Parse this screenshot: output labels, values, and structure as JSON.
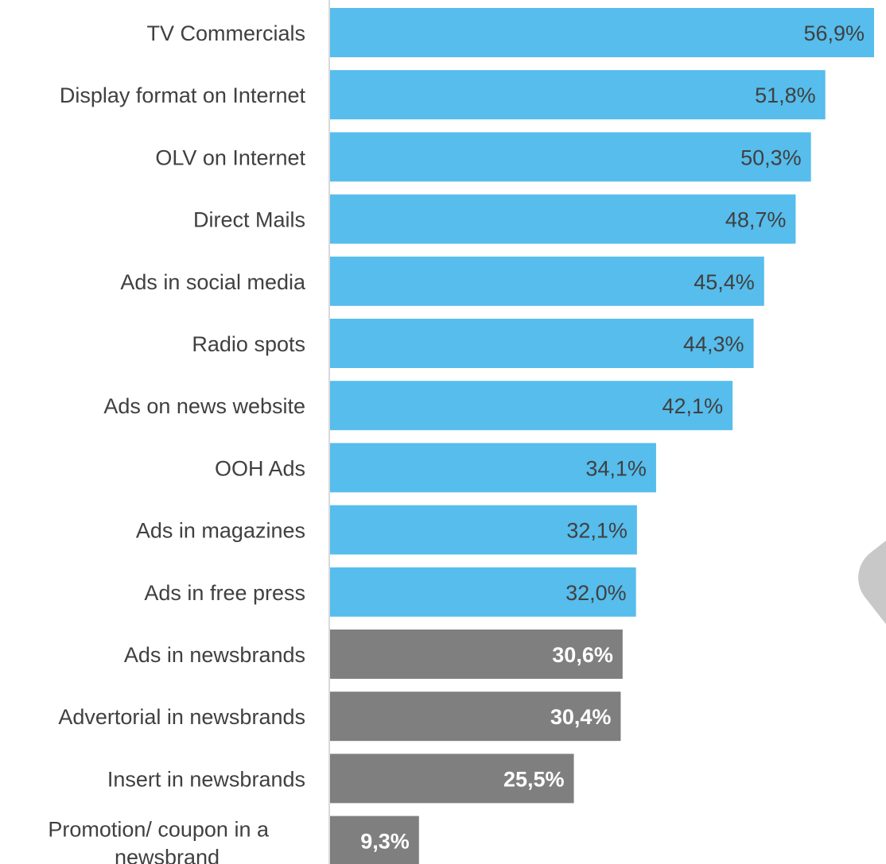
{
  "chart_data": {
    "type": "bar",
    "orientation": "horizontal",
    "categories": [
      "TV Commercials",
      "Display format on Internet",
      "OLV on Internet ",
      "Direct Mails",
      "Ads in social media",
      "Radio spots",
      "Ads on news website",
      "OOH Ads",
      "Ads in magazines",
      "Ads in free press",
      "Ads in newsbrands",
      "Advertorial in newsbrands",
      "Insert in newsbrands",
      "Promotion/ coupon in a newsbrand"
    ],
    "values": [
      56.9,
      51.8,
      50.3,
      48.7,
      45.4,
      44.3,
      42.1,
      34.1,
      32.1,
      32.0,
      30.6,
      30.4,
      25.5,
      9.3
    ],
    "value_labels": [
      "56,9%",
      "51,8%",
      "50,3%",
      "48,7%",
      "45,4%",
      "44,3%",
      "42,1%",
      "34,1%",
      "32,1%",
      "32,0%",
      "30,6%",
      "30,4%",
      "25,5%",
      "9,3%"
    ],
    "highlight": [
      false,
      false,
      false,
      false,
      false,
      false,
      false,
      false,
      false,
      false,
      true,
      true,
      true,
      true
    ],
    "xlim": [
      0,
      56.9
    ],
    "grid": false,
    "legend": "none",
    "colors": {
      "default_bar": "#56BDEC",
      "highlight_bar": "#7F7F7F",
      "default_label": "#404040",
      "highlight_label": "#FFFFFF",
      "axis": "#D9D9D9"
    }
  }
}
